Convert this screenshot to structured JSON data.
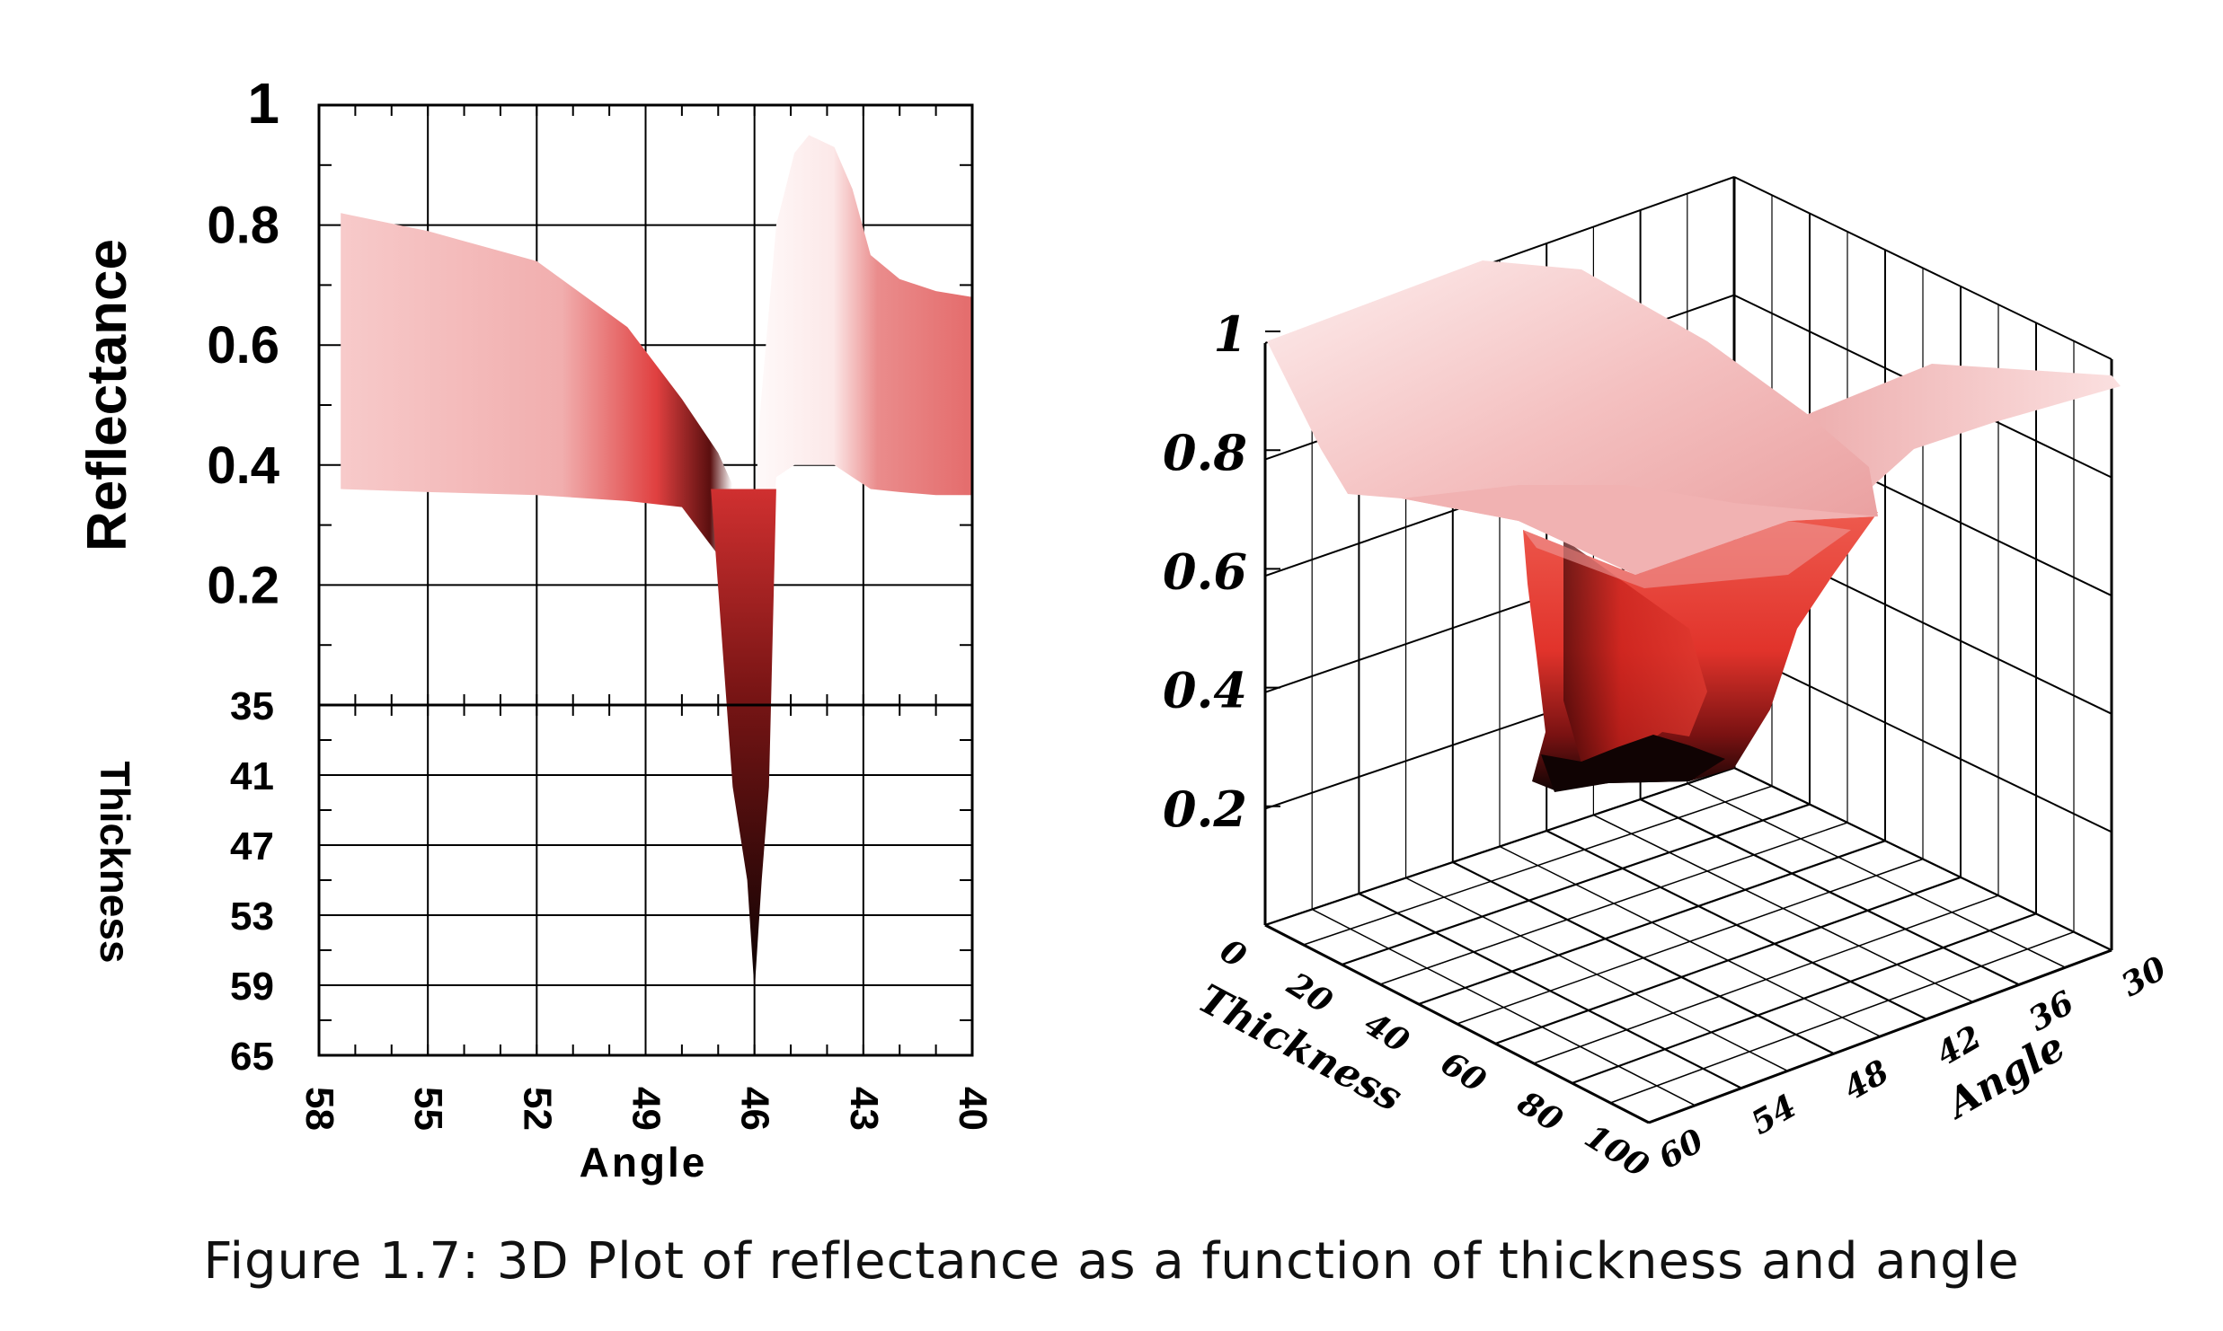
{
  "caption": "Figure 1.7:  3D Plot of reflectance as a function of thickness and angle",
  "colors": {
    "surface_light": "#fbe2e2",
    "surface_mid": "#e8a7a7",
    "surface_red": "#e0302a",
    "surface_dark": "#120404",
    "grid": "#000000"
  },
  "chart_data": [
    {
      "type": "area",
      "panel": "top",
      "xlabel": "",
      "ylabel": "Reflectance",
      "xlim": [
        58,
        40
      ],
      "ylim": [
        0,
        1
      ],
      "y_ticks": [
        "1",
        "0.8",
        "0.6",
        "0.4",
        "0.2"
      ],
      "grid": true,
      "series": [
        {
          "name": "",
          "x": [
            57.4,
            55,
            52,
            49.5,
            48,
            47,
            46.7,
            46.4,
            46.2,
            46,
            45.9,
            45.4,
            44.9,
            44.5,
            43.8,
            43.3,
            42.8,
            42,
            41,
            40
          ],
          "values": [
            0.82,
            0.79,
            0.74,
            0.63,
            0.51,
            0.42,
            0.38,
            0.34,
            0.3,
            0.2,
            0.45,
            0.8,
            0.92,
            0.95,
            0.93,
            0.86,
            0.75,
            0.71,
            0.69,
            0.68
          ]
        },
        {
          "name": "",
          "x": [
            57.4,
            55,
            52,
            49.5,
            48,
            47,
            46.7,
            46.4,
            46.2,
            46,
            45.9,
            45.4,
            44.9,
            44.5,
            43.8,
            43.3,
            42.8,
            42,
            41,
            40
          ],
          "values": [
            0.36,
            0.355,
            0.35,
            0.34,
            0.33,
            0.25,
            0.15,
            0.02,
            -0.3,
            -0.6,
            -0.1,
            0.38,
            0.4,
            0.4,
            0.4,
            0.38,
            0.36,
            0.355,
            0.35,
            0.35
          ]
        }
      ]
    },
    {
      "type": "area",
      "panel": "bottom",
      "xlabel": "Angle",
      "ylabel": "Thickness",
      "xlim": [
        58,
        40
      ],
      "ylim": [
        35,
        65
      ],
      "x_ticks": [
        "58",
        "55",
        "52",
        "49",
        "46",
        "43",
        "40"
      ],
      "y_ticks": [
        "35",
        "41",
        "47",
        "53",
        "59",
        "65"
      ],
      "grid": true,
      "series": [
        {
          "name": "",
          "x": [
            47.2,
            46.6,
            46.2,
            46.0,
            45.8,
            45.6,
            45.4
          ],
          "thickness": [
            35,
            42,
            50,
            59.5,
            50,
            42,
            35
          ]
        }
      ]
    },
    {
      "type": "heatmap",
      "panel": "3d-surface",
      "xlabel": "Thickness",
      "ylabel": "Angle",
      "zlabel": "",
      "x_ticks": [
        "0",
        "20",
        "40",
        "60",
        "80",
        "100"
      ],
      "y_ticks": [
        "60",
        "54",
        "48",
        "42",
        "36",
        "30"
      ],
      "z_ticks": [
        "1",
        "0.8",
        "0.6",
        "0.4",
        "0.2"
      ],
      "zlim": [
        0,
        1
      ],
      "grid": true,
      "surface": {
        "plateau_reflectance": 0.95,
        "ridge_reflectance": 0.7,
        "dip_minimum": 0.05,
        "dip_location": {
          "thickness": 50,
          "angle": 46
        }
      }
    }
  ]
}
